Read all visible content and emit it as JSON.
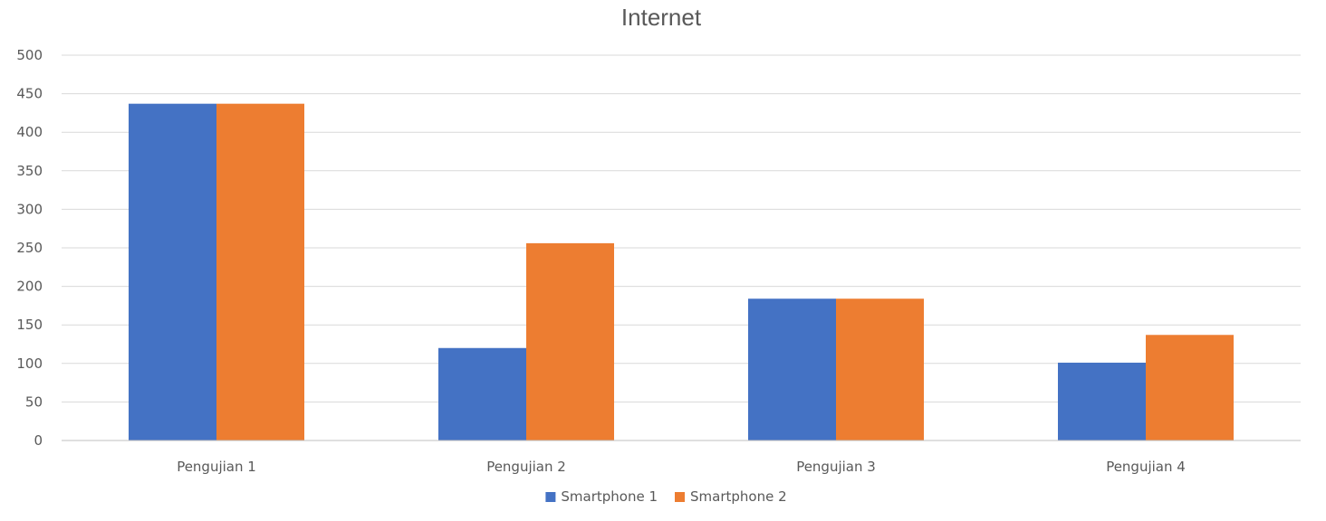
{
  "chart_data": {
    "type": "bar",
    "title": "Internet",
    "xlabel": "",
    "ylabel": "",
    "categories": [
      "Pengujian 1",
      "Pengujian 2",
      "Pengujian 3",
      "Pengujian 4"
    ],
    "series": [
      {
        "name": "Smartphone 1",
        "values": [
          437,
          120,
          184,
          101
        ],
        "color": "#4472C4"
      },
      {
        "name": "Smartphone 2",
        "values": [
          437,
          256,
          184,
          137
        ],
        "color": "#ED7D31"
      }
    ],
    "ylim": [
      0,
      500
    ],
    "yticks": [
      0,
      50,
      100,
      150,
      200,
      250,
      300,
      350,
      400,
      450,
      500
    ],
    "grid": true,
    "legend_position": "bottom"
  }
}
